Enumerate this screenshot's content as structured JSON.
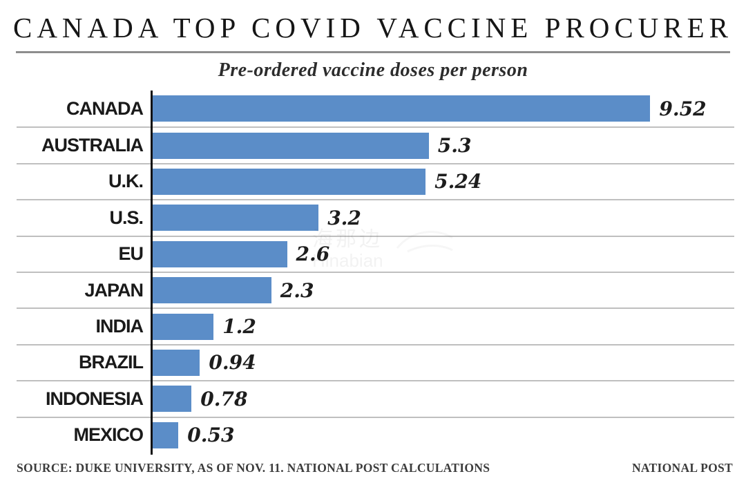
{
  "header": {
    "title": "CANADA TOP COVID VACCINE PROCURER",
    "subtitle": "Pre-ordered vaccine doses per person"
  },
  "footer": {
    "source": "SOURCE: DUKE UNIVERSITY, AS OF NOV. 11. NATIONAL POST CALCULATIONS",
    "credit": "NATIONAL POST"
  },
  "watermark": {
    "line1": "海那边",
    "line2": "Hinabian"
  },
  "chart_data": {
    "type": "bar",
    "orientation": "horizontal",
    "title": "CANADA TOP COVID VACCINE PROCURER",
    "subtitle": "Pre-ordered vaccine doses per person",
    "categories": [
      "CANADA",
      "AUSTRALIA",
      "U.K.",
      "U.S.",
      "EU",
      "JAPAN",
      "INDIA",
      "BRAZIL",
      "INDONESIA",
      "MEXICO"
    ],
    "values": [
      9.52,
      5.3,
      5.24,
      3.2,
      2.6,
      2.3,
      1.2,
      0.94,
      0.78,
      0.53
    ],
    "value_labels": [
      "9.52",
      "5.3",
      "5.24",
      "3.2",
      "2.6",
      "2.3",
      "1.2",
      "0.94",
      "0.78",
      "0.53"
    ],
    "xlim": [
      0,
      11.12
    ],
    "bar_color": "#5b8dc8",
    "separator_color": "#bfbfbf",
    "axis_color": "#111111",
    "grid": "row-separators-only",
    "legend": "none",
    "value_label_position": "right-of-bar"
  }
}
